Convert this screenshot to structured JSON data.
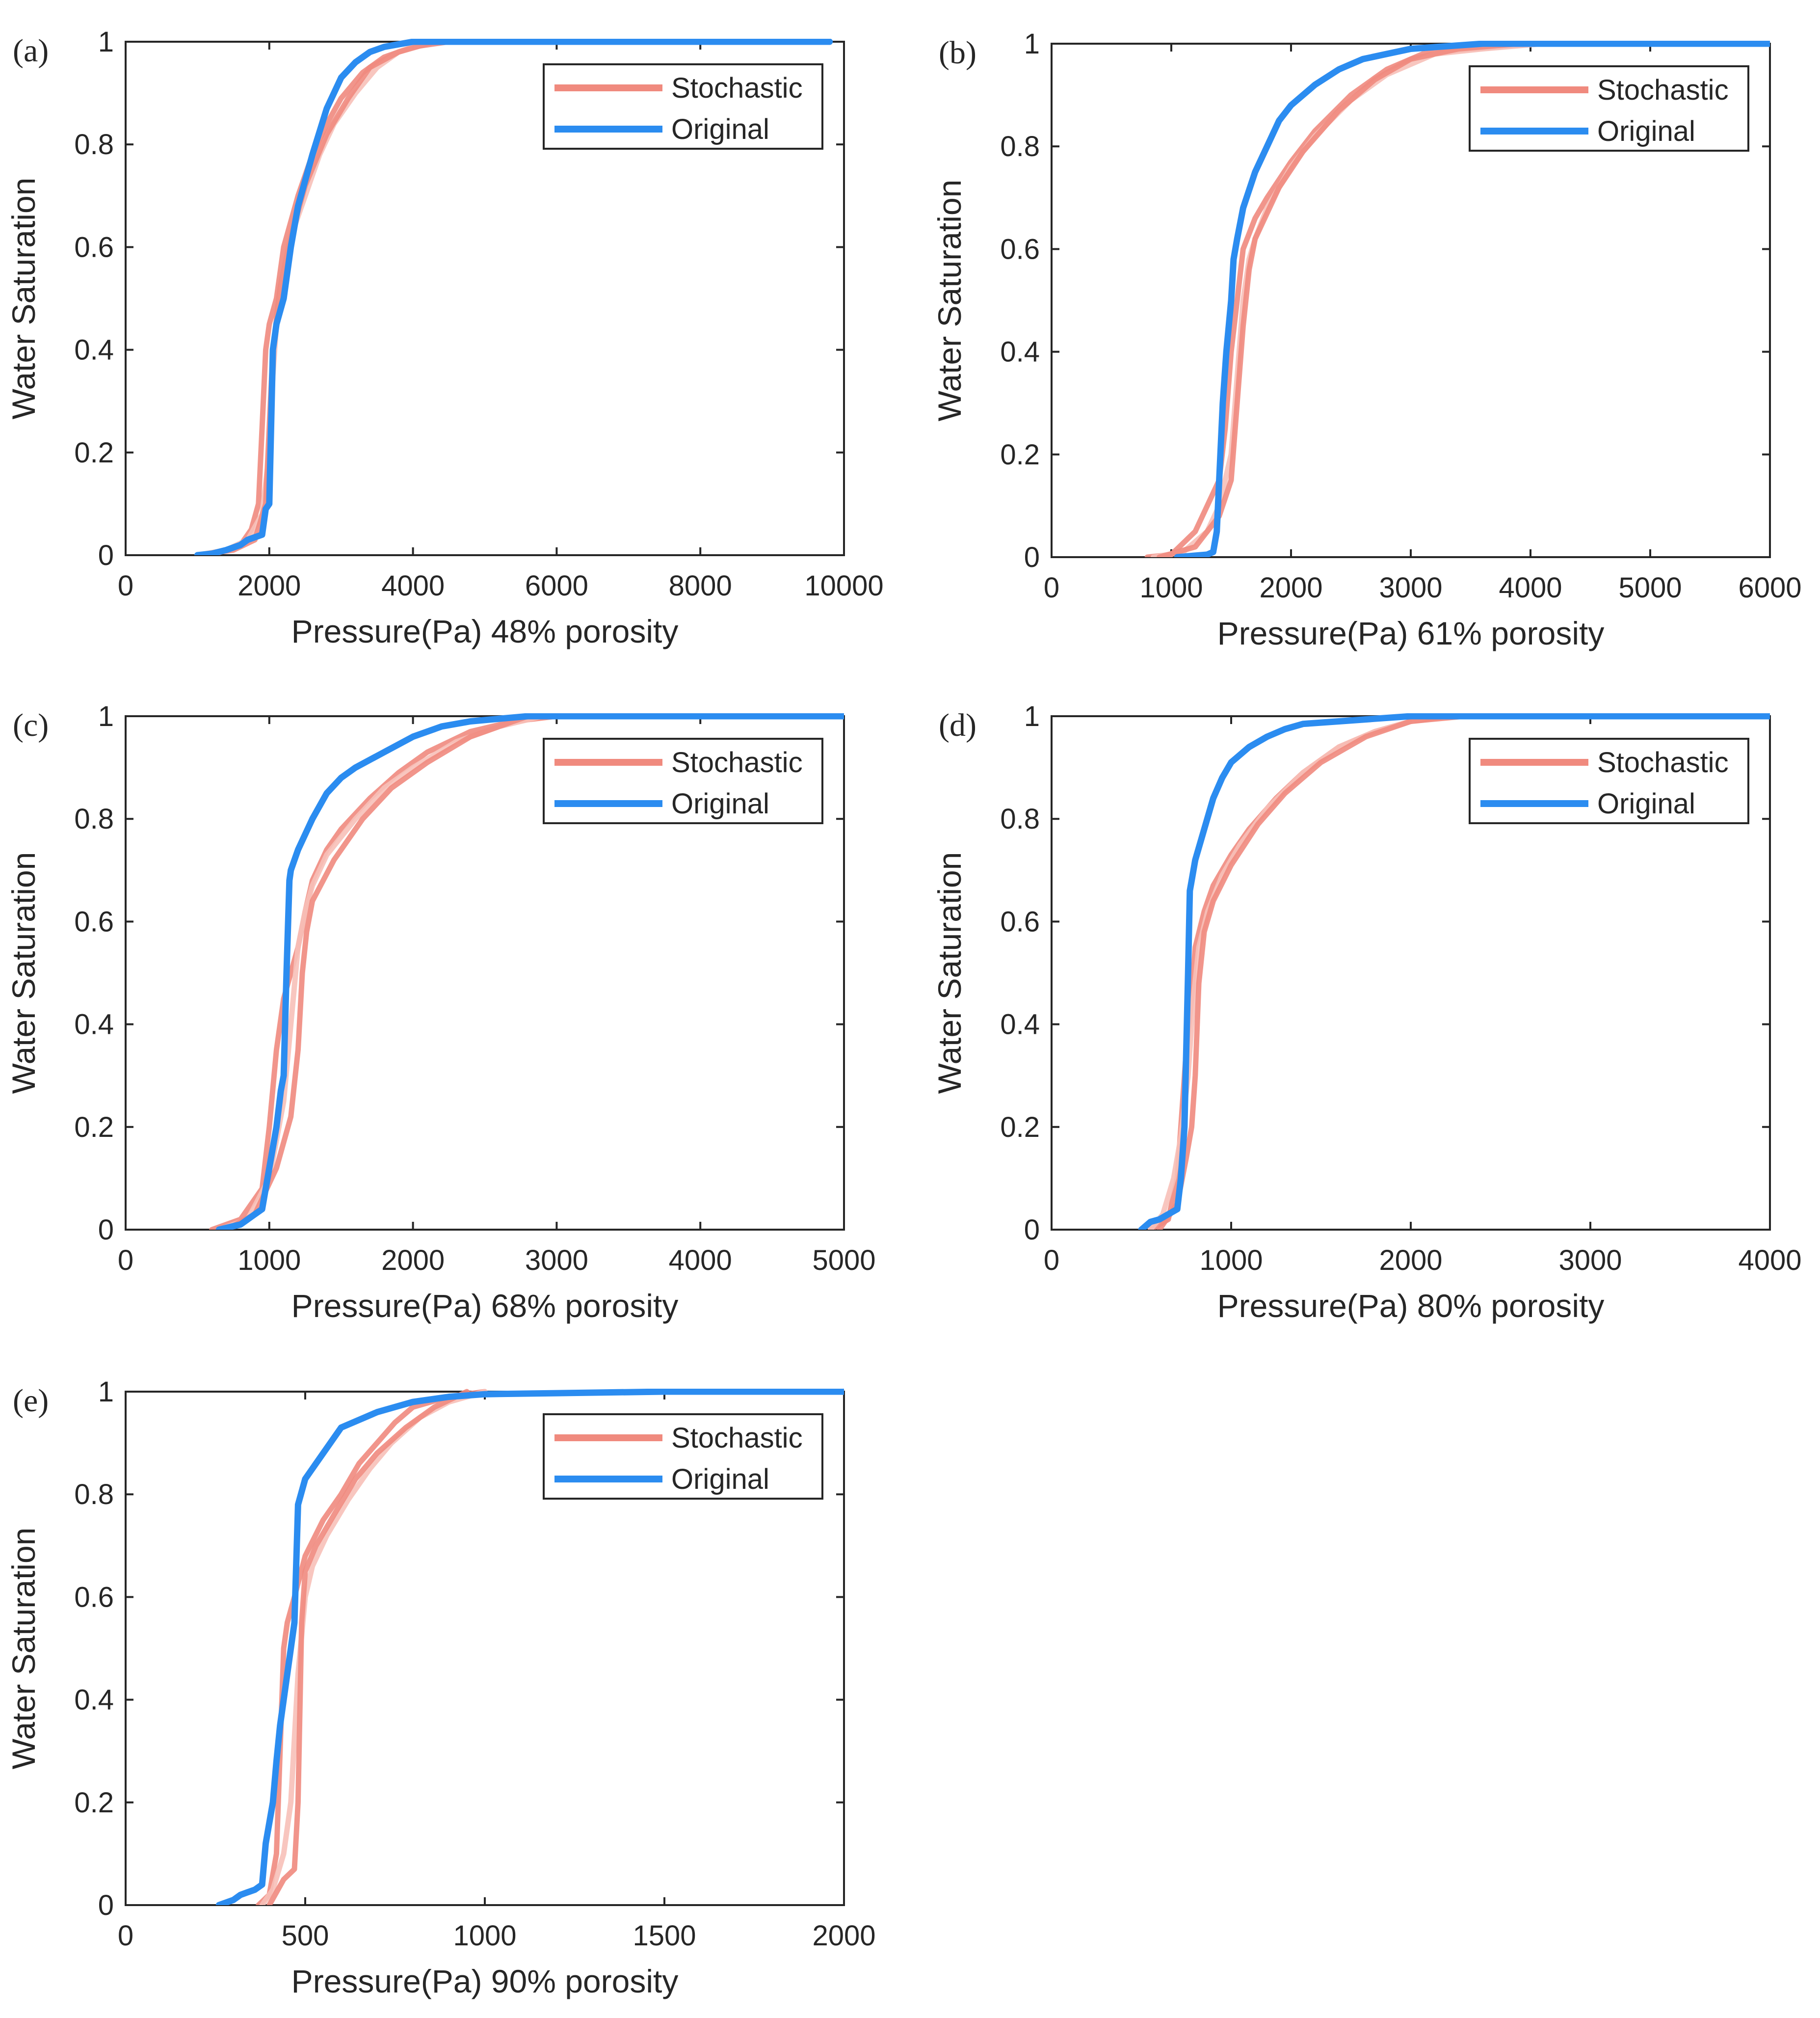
{
  "figure": {
    "series_colors": {
      "stochastic": "#f08a7e",
      "stochastic_light": "#f7c0b8",
      "original": "#2b8cf0"
    }
  },
  "chart_data": [
    {
      "id": "a",
      "type": "line",
      "panel_label": "(a)",
      "xlabel": "Pressure(Pa) 48% porosity",
      "ylabel": "Water Saturation",
      "xlim": [
        0,
        10000
      ],
      "ylim": [
        0,
        1
      ],
      "xticks": [
        0,
        2000,
        4000,
        6000,
        8000,
        10000
      ],
      "yticks": [
        0,
        0.2,
        0.4,
        0.6,
        0.8,
        1
      ],
      "ytick_labels": [
        "0",
        "0.2",
        "0.4",
        "0.6",
        "0.8",
        "1"
      ],
      "legend": {
        "entries": [
          "Stochastic",
          "Original"
        ],
        "placement": "top-right"
      },
      "series": [
        {
          "name": "Stochastic",
          "style": "stochastic",
          "x": [
            1000,
            1300,
            1600,
            1750,
            1850,
            1900,
            1950,
            2000,
            2100,
            2200,
            2400,
            2600,
            2800,
            3000,
            3300,
            3600,
            4000,
            4500,
            5000
          ],
          "y": [
            0,
            0.005,
            0.02,
            0.05,
            0.1,
            0.25,
            0.4,
            0.45,
            0.5,
            0.6,
            0.7,
            0.78,
            0.84,
            0.89,
            0.94,
            0.97,
            0.99,
            1,
            1
          ]
        },
        {
          "name": "Stochastic",
          "style": "stochastic_light",
          "x": [
            1000,
            1400,
            1700,
            1900,
            2000,
            2050,
            2100,
            2200,
            2300,
            2500,
            2700,
            2900,
            3200,
            3500,
            3800,
            4200,
            4700
          ],
          "y": [
            0,
            0.01,
            0.03,
            0.08,
            0.2,
            0.35,
            0.45,
            0.55,
            0.62,
            0.7,
            0.78,
            0.84,
            0.9,
            0.95,
            0.98,
            1,
            1
          ]
        },
        {
          "name": "Stochastic",
          "style": "stochastic",
          "x": [
            1000,
            1500,
            1800,
            1950,
            2000,
            2050,
            2150,
            2300,
            2500,
            2800,
            3100,
            3400,
            3800,
            4300
          ],
          "y": [
            0,
            0.01,
            0.03,
            0.1,
            0.25,
            0.4,
            0.52,
            0.62,
            0.72,
            0.82,
            0.89,
            0.95,
            0.98,
            1
          ]
        },
        {
          "name": "Original",
          "style": "original",
          "x": [
            1000,
            1200,
            1400,
            1600,
            1700,
            1800,
            1900,
            1950,
            2000,
            2050,
            2100,
            2200,
            2300,
            2400,
            2600,
            2800,
            3000,
            3200,
            3400,
            3600,
            3800,
            4000,
            4500,
            6000,
            8000,
            9800
          ],
          "y": [
            0,
            0.003,
            0.01,
            0.02,
            0.03,
            0.035,
            0.04,
            0.09,
            0.1,
            0.4,
            0.45,
            0.5,
            0.6,
            0.68,
            0.78,
            0.87,
            0.93,
            0.96,
            0.98,
            0.99,
            0.995,
            1,
            1,
            1,
            1,
            1
          ]
        }
      ]
    },
    {
      "id": "b",
      "type": "line",
      "panel_label": "(b)",
      "xlabel": "Pressure(Pa) 61% porosity",
      "ylabel": "Water Saturation",
      "xlim": [
        0,
        6000
      ],
      "ylim": [
        0,
        1
      ],
      "xticks": [
        0,
        1000,
        2000,
        3000,
        4000,
        5000,
        6000
      ],
      "yticks": [
        0,
        0.2,
        0.4,
        0.6,
        0.8,
        1
      ],
      "ytick_labels": [
        "0",
        "0.2",
        "0.4",
        "0.6",
        "0.8",
        "1"
      ],
      "legend": {
        "entries": [
          "Stochastic",
          "Original"
        ],
        "placement": "top-right"
      },
      "series": [
        {
          "name": "Stochastic",
          "style": "stochastic",
          "x": [
            800,
            1000,
            1200,
            1300,
            1400,
            1450,
            1500,
            1550,
            1600,
            1700,
            1800,
            2000,
            2200,
            2500,
            2800,
            3100,
            3500,
            4000
          ],
          "y": [
            0,
            0.005,
            0.05,
            0.1,
            0.15,
            0.25,
            0.4,
            0.5,
            0.6,
            0.66,
            0.7,
            0.77,
            0.83,
            0.9,
            0.95,
            0.98,
            0.99,
            1
          ]
        },
        {
          "name": "Stochastic",
          "style": "stochastic_light",
          "x": [
            850,
            1100,
            1300,
            1400,
            1500,
            1550,
            1600,
            1650,
            1700,
            1800,
            2000,
            2200,
            2500,
            2800,
            3200,
            3600,
            4100
          ],
          "y": [
            0,
            0.01,
            0.05,
            0.1,
            0.2,
            0.35,
            0.5,
            0.58,
            0.62,
            0.68,
            0.76,
            0.82,
            0.89,
            0.94,
            0.98,
            0.99,
            1
          ]
        },
        {
          "name": "Stochastic",
          "style": "stochastic",
          "x": [
            900,
            1200,
            1400,
            1500,
            1550,
            1600,
            1650,
            1700,
            1900,
            2100,
            2400,
            2700,
            3000,
            3400,
            3900
          ],
          "y": [
            0,
            0.02,
            0.08,
            0.15,
            0.3,
            0.45,
            0.56,
            0.62,
            0.72,
            0.79,
            0.87,
            0.93,
            0.97,
            0.99,
            1
          ]
        },
        {
          "name": "Original",
          "style": "original",
          "x": [
            1050,
            1200,
            1300,
            1350,
            1380,
            1400,
            1430,
            1460,
            1500,
            1520,
            1550,
            1600,
            1700,
            1800,
            1900,
            2000,
            2200,
            2400,
            2600,
            2800,
            3000,
            3300,
            3600,
            4000,
            5000,
            6000
          ],
          "y": [
            0,
            0.003,
            0.005,
            0.01,
            0.05,
            0.15,
            0.3,
            0.4,
            0.5,
            0.58,
            0.62,
            0.68,
            0.75,
            0.8,
            0.85,
            0.88,
            0.92,
            0.95,
            0.97,
            0.98,
            0.99,
            0.995,
            1,
            1,
            1,
            1
          ]
        }
      ]
    },
    {
      "id": "c",
      "type": "line",
      "panel_label": "(c)",
      "xlabel": "Pressure(Pa) 68% porosity",
      "ylabel": "Water Saturation",
      "xlim": [
        0,
        5000
      ],
      "ylim": [
        0,
        1
      ],
      "xticks": [
        0,
        1000,
        2000,
        3000,
        4000,
        5000
      ],
      "yticks": [
        0,
        0.2,
        0.4,
        0.6,
        0.8,
        1
      ],
      "ytick_labels": [
        "0",
        "0.2",
        "0.4",
        "0.6",
        "0.8",
        "1"
      ],
      "legend": {
        "entries": [
          "Stochastic",
          "Original"
        ],
        "placement": "top-right"
      },
      "series": [
        {
          "name": "Stochastic",
          "style": "stochastic",
          "x": [
            600,
            800,
            950,
            1000,
            1050,
            1100,
            1150,
            1200,
            1250,
            1300,
            1400,
            1500,
            1700,
            1900,
            2100,
            2400,
            2700,
            3000
          ],
          "y": [
            0,
            0.02,
            0.08,
            0.2,
            0.35,
            0.45,
            0.5,
            0.55,
            0.62,
            0.68,
            0.74,
            0.78,
            0.84,
            0.89,
            0.93,
            0.97,
            0.99,
            1
          ]
        },
        {
          "name": "Stochastic",
          "style": "stochastic_light",
          "x": [
            650,
            850,
            1000,
            1100,
            1150,
            1200,
            1250,
            1300,
            1400,
            1600,
            1800,
            2000,
            2300,
            2600,
            2900
          ],
          "y": [
            0,
            0.02,
            0.1,
            0.25,
            0.4,
            0.55,
            0.62,
            0.67,
            0.73,
            0.8,
            0.86,
            0.9,
            0.95,
            0.98,
            1
          ]
        },
        {
          "name": "Stochastic",
          "style": "stochastic",
          "x": [
            700,
            900,
            1050,
            1150,
            1200,
            1230,
            1260,
            1300,
            1450,
            1650,
            1850,
            2100,
            2400,
            2800
          ],
          "y": [
            0,
            0.03,
            0.12,
            0.22,
            0.35,
            0.5,
            0.58,
            0.64,
            0.72,
            0.8,
            0.86,
            0.91,
            0.96,
            1
          ]
        },
        {
          "name": "Original",
          "style": "original",
          "x": [
            650,
            800,
            900,
            950,
            1000,
            1050,
            1080,
            1100,
            1120,
            1140,
            1150,
            1200,
            1300,
            1400,
            1500,
            1600,
            1800,
            2000,
            2200,
            2400,
            2600,
            2800,
            3000,
            4000,
            5000
          ],
          "y": [
            0,
            0.01,
            0.03,
            0.04,
            0.12,
            0.2,
            0.27,
            0.3,
            0.5,
            0.68,
            0.7,
            0.74,
            0.8,
            0.85,
            0.88,
            0.9,
            0.93,
            0.96,
            0.98,
            0.99,
            0.995,
            1,
            1,
            1,
            1
          ]
        }
      ]
    },
    {
      "id": "d",
      "type": "line",
      "panel_label": "(d)",
      "xlabel": "Pressure(Pa) 80% porosity",
      "ylabel": "Water Saturation",
      "xlim": [
        0,
        4000
      ],
      "ylim": [
        0,
        1
      ],
      "xticks": [
        0,
        1000,
        2000,
        3000,
        4000
      ],
      "yticks": [
        0,
        0.2,
        0.4,
        0.6,
        0.8,
        1
      ],
      "ytick_labels": [
        "0",
        "0.2",
        "0.4",
        "0.6",
        "0.8",
        "1"
      ],
      "legend": {
        "entries": [
          "Stochastic",
          "Original"
        ],
        "placement": "top-right"
      },
      "series": [
        {
          "name": "Stochastic",
          "style": "stochastic",
          "x": [
            550,
            650,
            700,
            720,
            750,
            780,
            800,
            850,
            900,
            1000,
            1100,
            1250,
            1400,
            1600,
            1800,
            2000,
            2200
          ],
          "y": [
            0,
            0.02,
            0.1,
            0.2,
            0.35,
            0.45,
            0.55,
            0.62,
            0.67,
            0.73,
            0.78,
            0.84,
            0.89,
            0.94,
            0.97,
            0.99,
            1
          ]
        },
        {
          "name": "Stochastic",
          "style": "stochastic_light",
          "x": [
            550,
            620,
            680,
            720,
            760,
            790,
            820,
            870,
            950,
            1050,
            1200,
            1400,
            1600,
            1800,
            2100
          ],
          "y": [
            0,
            0.03,
            0.1,
            0.18,
            0.3,
            0.45,
            0.55,
            0.62,
            0.69,
            0.75,
            0.82,
            0.89,
            0.94,
            0.97,
            1
          ]
        },
        {
          "name": "Stochastic",
          "style": "stochastic",
          "x": [
            600,
            700,
            750,
            780,
            800,
            820,
            850,
            900,
            1000,
            1150,
            1300,
            1500,
            1750,
            2000,
            2300
          ],
          "y": [
            0,
            0.05,
            0.14,
            0.2,
            0.3,
            0.48,
            0.58,
            0.64,
            0.71,
            0.79,
            0.85,
            0.91,
            0.96,
            0.99,
            1
          ]
        },
        {
          "name": "Original",
          "style": "original",
          "x": [
            500,
            550,
            600,
            650,
            700,
            720,
            740,
            760,
            770,
            780,
            800,
            850,
            900,
            950,
            1000,
            1100,
            1200,
            1300,
            1400,
            1600,
            1800,
            2000,
            2500,
            3000,
            4000
          ],
          "y": [
            0,
            0.015,
            0.02,
            0.03,
            0.04,
            0.1,
            0.2,
            0.5,
            0.66,
            0.68,
            0.72,
            0.78,
            0.84,
            0.88,
            0.91,
            0.94,
            0.96,
            0.975,
            0.985,
            0.99,
            0.995,
            1,
            1,
            1,
            1
          ]
        }
      ]
    },
    {
      "id": "e",
      "type": "line",
      "panel_label": "(e)",
      "xlabel": "Pressure(Pa) 90% porosity",
      "ylabel": "Water Saturation",
      "xlim": [
        0,
        2000
      ],
      "ylim": [
        0,
        1
      ],
      "xticks": [
        0,
        500,
        1000,
        1500,
        2000
      ],
      "yticks": [
        0,
        0.2,
        0.4,
        0.6,
        0.8,
        1
      ],
      "ytick_labels": [
        "0",
        "0.2",
        "0.4",
        "0.6",
        "0.8",
        "1"
      ],
      "legend": {
        "entries": [
          "Stochastic",
          "Original"
        ],
        "placement": "top-right"
      },
      "series": [
        {
          "name": "Stochastic",
          "style": "stochastic",
          "x": [
            370,
            400,
            420,
            430,
            440,
            450,
            470,
            500,
            550,
            600,
            650,
            700,
            750,
            800,
            900,
            1000
          ],
          "y": [
            0,
            0.02,
            0.1,
            0.3,
            0.5,
            0.55,
            0.6,
            0.68,
            0.75,
            0.8,
            0.86,
            0.9,
            0.94,
            0.97,
            0.99,
            1
          ]
        },
        {
          "name": "Stochastic",
          "style": "stochastic_light",
          "x": [
            380,
            410,
            440,
            460,
            480,
            500,
            520,
            560,
            620,
            680,
            740,
            820,
            900,
            1000
          ],
          "y": [
            0,
            0.03,
            0.1,
            0.2,
            0.45,
            0.6,
            0.66,
            0.72,
            0.79,
            0.85,
            0.9,
            0.95,
            0.98,
            1
          ]
        },
        {
          "name": "Stochastic",
          "style": "stochastic",
          "x": [
            400,
            440,
            470,
            480,
            490,
            500,
            530,
            580,
            640,
            700,
            780,
            860,
            950
          ],
          "y": [
            0,
            0.05,
            0.07,
            0.2,
            0.55,
            0.65,
            0.7,
            0.76,
            0.83,
            0.88,
            0.93,
            0.97,
            1
          ]
        },
        {
          "name": "Original",
          "style": "original",
          "x": [
            260,
            300,
            320,
            340,
            360,
            380,
            390,
            400,
            410,
            420,
            430,
            440,
            450,
            460,
            470,
            480,
            500,
            550,
            600,
            700,
            800,
            900,
            1000,
            1500,
            2000
          ],
          "y": [
            0,
            0.01,
            0.02,
            0.025,
            0.03,
            0.04,
            0.12,
            0.16,
            0.2,
            0.28,
            0.35,
            0.4,
            0.45,
            0.5,
            0.55,
            0.78,
            0.83,
            0.88,
            0.93,
            0.96,
            0.98,
            0.99,
            0.995,
            1,
            1
          ]
        }
      ]
    }
  ]
}
